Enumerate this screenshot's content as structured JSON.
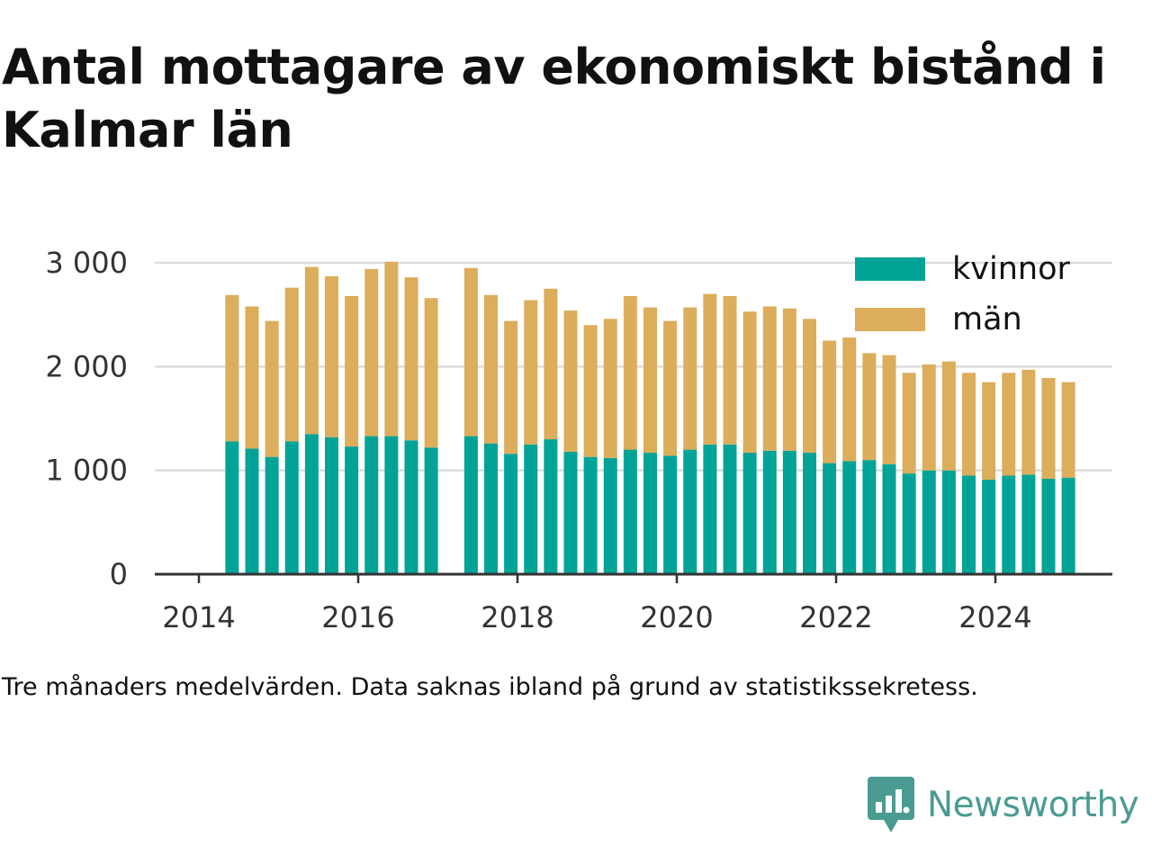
{
  "title": "Antal mottagare av ekonomiskt bistånd i Kalmar län",
  "note": "Tre månaders medelvärden. Data saknas ibland på grund av statistikssekretess.",
  "brand": {
    "name": "Newsworthy",
    "icon": "newsworthy-logo-icon",
    "color": "#4a9b91"
  },
  "colors": {
    "kvinnor": "#00a396",
    "man": "#dcad5a",
    "grid": "#dddddd",
    "axis": "#333333",
    "text": "#111111"
  },
  "chart_data": {
    "type": "bar",
    "stacked": true,
    "xlabel": "",
    "ylabel": "",
    "ylim": [
      0,
      3000
    ],
    "yticks": [
      0,
      1000,
      2000,
      3000
    ],
    "ytick_labels": [
      "0",
      "1 000",
      "2 000",
      "3 000"
    ],
    "xlim": [
      "2013-09",
      "2025-09"
    ],
    "xticks": [
      "2014",
      "2016",
      "2018",
      "2020",
      "2022",
      "2024"
    ],
    "grid": true,
    "legend_position": "top-right",
    "x": [
      "2014-06",
      "2014-09",
      "2014-12",
      "2015-03",
      "2015-06",
      "2015-09",
      "2015-12",
      "2016-03",
      "2016-06",
      "2016-09",
      "2016-12",
      "2017-06",
      "2017-09",
      "2017-12",
      "2018-03",
      "2018-06",
      "2018-09",
      "2018-12",
      "2019-03",
      "2019-06",
      "2019-09",
      "2019-12",
      "2020-03",
      "2020-06",
      "2020-09",
      "2020-12",
      "2021-03",
      "2021-06",
      "2021-09",
      "2021-12",
      "2022-03",
      "2022-06",
      "2022-09",
      "2022-12",
      "2023-03",
      "2023-06",
      "2023-09",
      "2023-12",
      "2024-03",
      "2024-06",
      "2024-09",
      "2024-12"
    ],
    "series": [
      {
        "name": "kvinnor",
        "values": [
          1280,
          1210,
          1130,
          1280,
          1350,
          1320,
          1230,
          1330,
          1330,
          1290,
          1220,
          1330,
          1260,
          1160,
          1250,
          1300,
          1180,
          1130,
          1120,
          1200,
          1170,
          1140,
          1200,
          1250,
          1250,
          1170,
          1190,
          1190,
          1170,
          1070,
          1090,
          1100,
          1060,
          970,
          1000,
          1000,
          950,
          910,
          950,
          960,
          920,
          930
        ]
      },
      {
        "name": "män",
        "values": [
          1410,
          1370,
          1310,
          1480,
          1610,
          1550,
          1450,
          1610,
          1680,
          1570,
          1440,
          1620,
          1430,
          1280,
          1390,
          1450,
          1360,
          1270,
          1340,
          1480,
          1400,
          1300,
          1370,
          1450,
          1430,
          1360,
          1390,
          1370,
          1290,
          1180,
          1190,
          1030,
          1050,
          970,
          1020,
          1050,
          990,
          940,
          990,
          1010,
          970,
          920
        ]
      }
    ]
  }
}
